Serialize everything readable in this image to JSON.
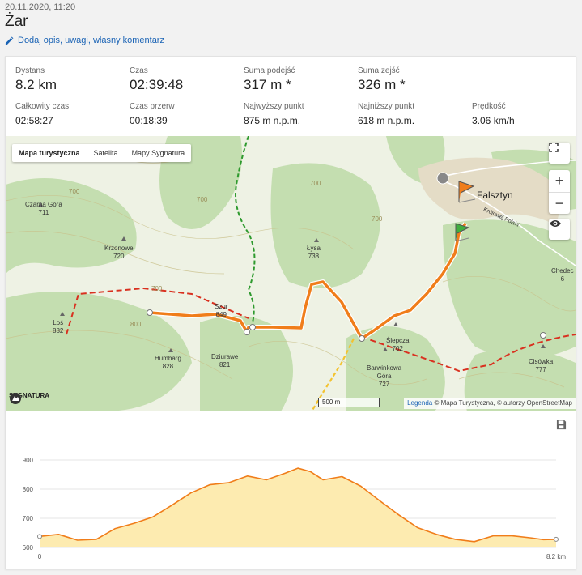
{
  "header": {
    "datetime": "20.11.2020, 11:20",
    "title": "Żar",
    "edit_label": "Dodaj opis, uwagi, własny komentarz"
  },
  "stats": {
    "distance": {
      "label": "Dystans",
      "value": "8.2 km"
    },
    "time": {
      "label": "Czas",
      "value": "02:39:48"
    },
    "ascent": {
      "label": "Suma podejść",
      "value": "317 m *"
    },
    "descent": {
      "label": "Suma zejść",
      "value": "326 m *"
    },
    "total_time": {
      "label": "Całkowity czas",
      "value": "02:58:27"
    },
    "break_time": {
      "label": "Czas przerw",
      "value": "00:18:39"
    },
    "max_point": {
      "label": "Najwyższy punkt",
      "value": "875 m n.p.m."
    },
    "min_point": {
      "label": "Najniższy punkt",
      "value": "618 m n.p.m."
    },
    "speed": {
      "label": "Prędkość",
      "value": "3.06 km/h"
    }
  },
  "map": {
    "tabs": [
      "Mapa turystyczna",
      "Satelita",
      "Mapy Sygnatura"
    ],
    "active_tab": "Mapa turystyczna",
    "scale": "500 m",
    "legend_link": "Legenda",
    "attribution": "© Mapa Turystyczna, © autorzy OpenStreetMap",
    "logo": "SYGNATURA",
    "town": "Falsztyn",
    "labels": {
      "czarna_gora": "Czarna Góra\n711",
      "krzonowe": "Krzonowe\n720",
      "lysa": "Łysa\n738",
      "los": "Łoś\n882",
      "szur": "Szur\n849",
      "humbarg": "Humbarg\n828",
      "dziurawe": "Dziurawe\n821",
      "slepcza": "Ślepcza\n702",
      "barwinkowa": "Barwinkowa\nGóra\n727",
      "cisowka": "Cisówka\n777",
      "chedec": "Chedec\n6",
      "krolowej": "Królowej Polski",
      "c700a": "700",
      "c700b": "700",
      "c700c": "700",
      "c700d": "700",
      "c700e": "700",
      "c800": "800"
    },
    "colors": {
      "track": "#f07d1a",
      "trail_red": "#d9301f",
      "trail_green": "#2e9a2e",
      "trail_yellow": "#f3c330",
      "forest": "#c4deb0"
    }
  },
  "chart_data": {
    "type": "area",
    "x": [
      0,
      0.3,
      0.6,
      0.9,
      1.2,
      1.5,
      1.8,
      2.1,
      2.4,
      2.7,
      3.0,
      3.3,
      3.6,
      3.9,
      4.1,
      4.3,
      4.5,
      4.8,
      5.1,
      5.4,
      5.7,
      6.0,
      6.3,
      6.6,
      6.9,
      7.2,
      7.5,
      7.8,
      8.0,
      8.2
    ],
    "values": [
      638,
      645,
      625,
      628,
      665,
      683,
      705,
      745,
      787,
      815,
      822,
      845,
      832,
      855,
      872,
      860,
      832,
      843,
      810,
      760,
      712,
      668,
      645,
      628,
      620,
      640,
      640,
      633,
      627,
      628
    ],
    "xlabel": "",
    "ylabel": "",
    "x_tick_labels": [
      "0",
      "8.2 km"
    ],
    "y_ticks": [
      600,
      700,
      800,
      900
    ],
    "ylim": [
      600,
      900
    ],
    "grid": true,
    "line_color": "#f07d1a",
    "fill_color": "#fdebb0"
  }
}
